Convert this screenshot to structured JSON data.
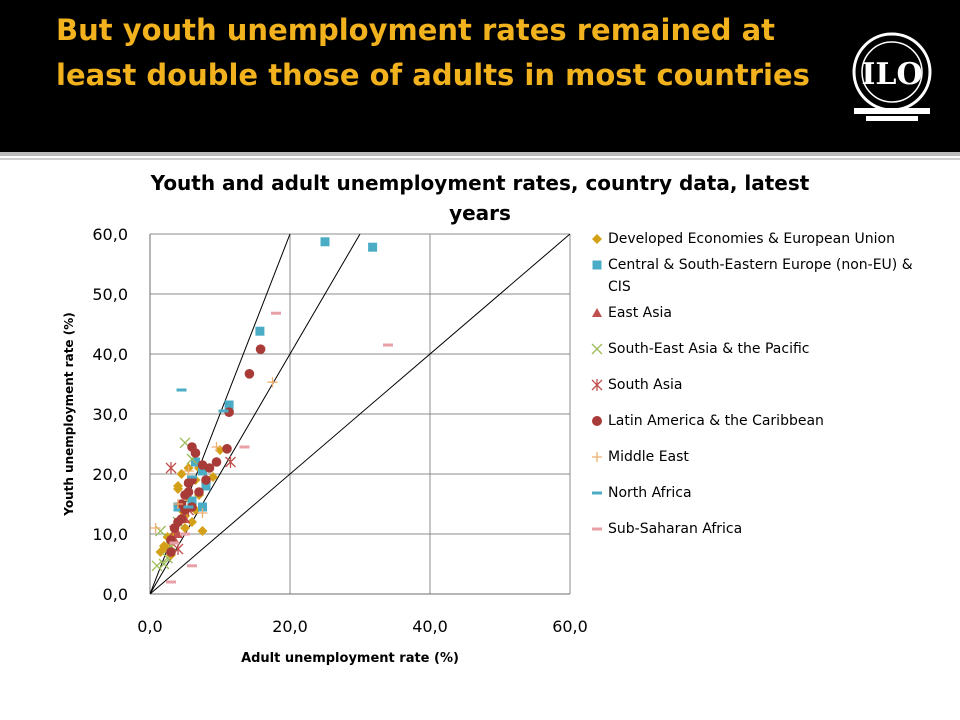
{
  "slide": {
    "title": "But youth unemployment rates remained at least double those of adults in most countries",
    "logo_text": "ILO"
  },
  "chart_data": {
    "type": "scatter",
    "title": "Youth and adult unemployment rates, country data, latest years",
    "xlabel": "Adult unemployment rate (%)",
    "ylabel": "Youth unemployment rate (%)",
    "xlim": [
      0,
      60
    ],
    "ylim": [
      0,
      60
    ],
    "xticks": [
      "0,0",
      "20,0",
      "40,0",
      "60,0"
    ],
    "yticks": [
      "0,0",
      "10,0",
      "20,0",
      "30,0",
      "40,0",
      "50,0",
      "60,0"
    ],
    "grid": true,
    "legend_position": "right",
    "reference_lines": [
      {
        "slope": 1
      },
      {
        "slope": 2
      },
      {
        "slope": 3
      }
    ],
    "series": [
      {
        "name": "Developed Economies & European Union",
        "marker": "diamond",
        "color": "#d4a017",
        "points": [
          [
            1.5,
            7.0
          ],
          [
            2.0,
            8.0
          ],
          [
            2.5,
            9.5
          ],
          [
            3.0,
            6.5
          ],
          [
            3.5,
            10.0
          ],
          [
            3.0,
            8.5
          ],
          [
            4.0,
            12.0
          ],
          [
            4.5,
            14.0
          ],
          [
            4.0,
            18.0
          ],
          [
            4.5,
            20.0
          ],
          [
            5.0,
            13.0
          ],
          [
            5.5,
            16.0
          ],
          [
            6.0,
            15.0
          ],
          [
            6.5,
            19.0
          ],
          [
            7.0,
            16.5
          ],
          [
            7.5,
            10.5
          ],
          [
            7.0,
            21.0
          ],
          [
            8.0,
            18.5
          ],
          [
            9.0,
            19.5
          ],
          [
            10.0,
            24.0
          ],
          [
            5.5,
            21.0
          ],
          [
            6.0,
            12.0
          ],
          [
            5.0,
            11.0
          ],
          [
            2.5,
            7.5
          ],
          [
            4.0,
            17.5
          ],
          [
            6.5,
            14.0
          ]
        ]
      },
      {
        "name": "Central & South-Eastern Europe (non-EU) & CIS",
        "marker": "square",
        "color": "#4bacc6",
        "points": [
          [
            25.0,
            58.7
          ],
          [
            31.8,
            57.8
          ],
          [
            15.7,
            43.8
          ],
          [
            11.3,
            31.5
          ],
          [
            7.5,
            14.5
          ],
          [
            4.0,
            14.5
          ],
          [
            6.0,
            15.5
          ],
          [
            7.5,
            20.5
          ],
          [
            8.0,
            18.0
          ],
          [
            6.5,
            22.0
          ]
        ]
      },
      {
        "name": "East Asia",
        "marker": "triangle",
        "color": "#c0504d",
        "points": [
          [
            4.0,
            10.0
          ],
          [
            3.5,
            9.0
          ],
          [
            5.0,
            12.5
          ]
        ]
      },
      {
        "name": "South-East Asia & the Pacific",
        "marker": "x",
        "color": "#9bbb59",
        "points": [
          [
            5.0,
            25.2
          ],
          [
            1.5,
            10.5
          ],
          [
            1.0,
            4.7
          ],
          [
            2.0,
            5.0
          ],
          [
            3.0,
            8.0
          ],
          [
            4.0,
            12.0
          ],
          [
            6.0,
            22.5
          ],
          [
            2.5,
            6.0
          ]
        ]
      },
      {
        "name": "South Asia",
        "marker": "asterisk",
        "color": "#c0504d",
        "points": [
          [
            3.0,
            21.0
          ],
          [
            4.0,
            7.5
          ],
          [
            3.5,
            10.5
          ],
          [
            5.5,
            14.0
          ],
          [
            11.5,
            22.0
          ]
        ]
      },
      {
        "name": "Latin America & the Caribbean",
        "marker": "circle",
        "color": "#a83a37",
        "points": [
          [
            15.8,
            40.8
          ],
          [
            14.2,
            36.7
          ],
          [
            11.3,
            30.3
          ],
          [
            11.0,
            24.2
          ],
          [
            9.5,
            22.0
          ],
          [
            8.5,
            21.0
          ],
          [
            7.5,
            21.5
          ],
          [
            6.5,
            23.5
          ],
          [
            6.0,
            24.5
          ],
          [
            5.5,
            18.5
          ],
          [
            5.0,
            16.5
          ],
          [
            6.0,
            19.0
          ],
          [
            5.0,
            14.0
          ],
          [
            4.5,
            12.5
          ],
          [
            4.0,
            12.0
          ],
          [
            3.5,
            11.0
          ],
          [
            3.0,
            9.0
          ],
          [
            3.0,
            7.0
          ],
          [
            6.0,
            14.5
          ],
          [
            7.0,
            17.0
          ],
          [
            8.0,
            19.0
          ],
          [
            5.5,
            17.0
          ],
          [
            4.5,
            15.0
          ]
        ]
      },
      {
        "name": "Middle East",
        "marker": "plus",
        "color": "#f0b070",
        "points": [
          [
            17.5,
            35.3
          ],
          [
            9.5,
            24.5
          ],
          [
            5.5,
            20.5
          ],
          [
            4.0,
            15.0
          ],
          [
            7.5,
            13.5
          ],
          [
            0.8,
            11.0
          ]
        ]
      },
      {
        "name": "North Africa",
        "marker": "dash",
        "color": "#4bacc6",
        "points": [
          [
            4.5,
            34.0
          ],
          [
            10.5,
            30.5
          ],
          [
            5.5,
            14.5
          ],
          [
            6.0,
            19.5
          ]
        ]
      },
      {
        "name": "Sub-Saharan Africa",
        "marker": "dash",
        "color": "#e8a0a8",
        "points": [
          [
            18.0,
            46.8
          ],
          [
            34.0,
            41.5
          ],
          [
            13.5,
            24.5
          ],
          [
            6.0,
            4.7
          ],
          [
            3.0,
            2.0
          ],
          [
            3.5,
            8.5
          ],
          [
            5.0,
            10.0
          ]
        ]
      }
    ]
  }
}
